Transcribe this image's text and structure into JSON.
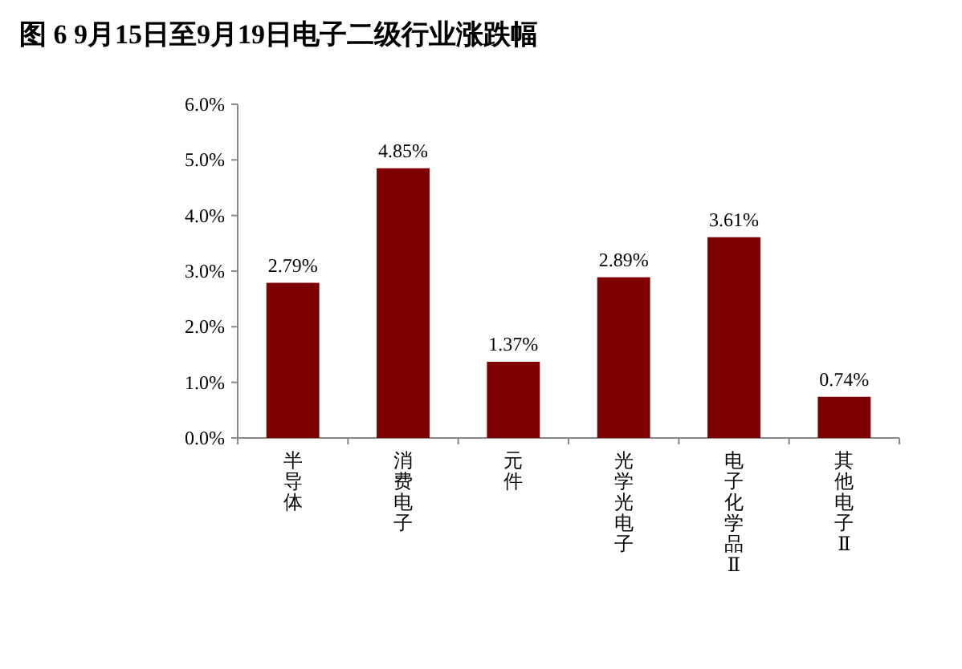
{
  "chart_data": {
    "type": "bar",
    "title": "图 6 9月15日至9月19日电子二级行业涨跌幅",
    "categories": [
      "半导体",
      "消费电子",
      "元件",
      "光学光电子",
      "电子化学品Ⅱ",
      "其他电子Ⅱ"
    ],
    "values": [
      2.79,
      4.85,
      1.37,
      2.89,
      3.61,
      0.74
    ],
    "value_labels": [
      "2.79%",
      "4.85%",
      "1.37%",
      "2.89%",
      "3.61%",
      "0.74%"
    ],
    "color": "#7f0000",
    "ylim": [
      0,
      6
    ],
    "yticks": [
      {
        "value": 0,
        "label": "0.0%"
      },
      {
        "value": 1,
        "label": "1.0%"
      },
      {
        "value": 2,
        "label": "2.0%"
      },
      {
        "value": 3,
        "label": "3.0%"
      },
      {
        "value": 4,
        "label": "4.0%"
      },
      {
        "value": 5,
        "label": "5.0%"
      },
      {
        "value": 6,
        "label": "6.0%"
      }
    ],
    "grid": false
  }
}
